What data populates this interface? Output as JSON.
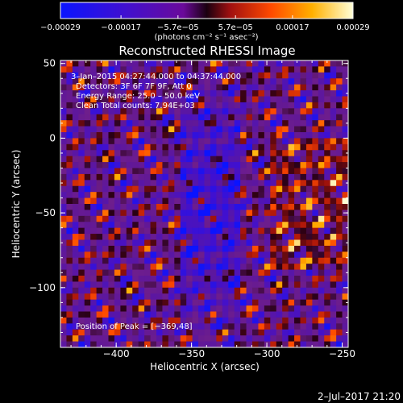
{
  "colorbar": {
    "tick_labels": [
      "−0.00029",
      "−0.00017",
      "−5.7e−05",
      "5.7e−05",
      "0.00017",
      "0.00029"
    ],
    "tick_values": [
      -0.00029,
      -0.00017,
      -5.7e-05,
      5.7e-05,
      0.00017,
      0.00029
    ],
    "units_label": "(photons cm⁻² s⁻¹ asec⁻²)"
  },
  "chart_data": {
    "type": "heatmap",
    "title": "Reconstructed RHESSI Image",
    "xlabel": "Heliocentric X (arcsec)",
    "ylabel": "Heliocentric Y (arcsec)",
    "xlim": [
      -437,
      -246
    ],
    "ylim": [
      -140,
      52
    ],
    "x_ticks": [
      -400,
      -350,
      -300,
      -250
    ],
    "x_tick_labels": [
      "−400",
      "−350",
      "−300",
      "−250"
    ],
    "y_ticks": [
      50,
      0,
      -50,
      -100
    ],
    "y_tick_labels": [
      "50",
      "0",
      "−50",
      "−100"
    ],
    "value_range": [
      -0.00029,
      0.00029
    ],
    "peak_position": [
      -369,
      48
    ],
    "annotations": [
      "3–Jan–2015 04:27:44.000 to 04:37:44.000",
      "Detectors: 3F 6F 7F 9F, Att 0",
      "Energy Range: 25.0 – 50.0 keV",
      "Clean    Total counts: 7.94E+03",
      "Position of Peak = [−369,48]"
    ]
  },
  "footer": {
    "date": "2–Jul–2017 21:20"
  }
}
